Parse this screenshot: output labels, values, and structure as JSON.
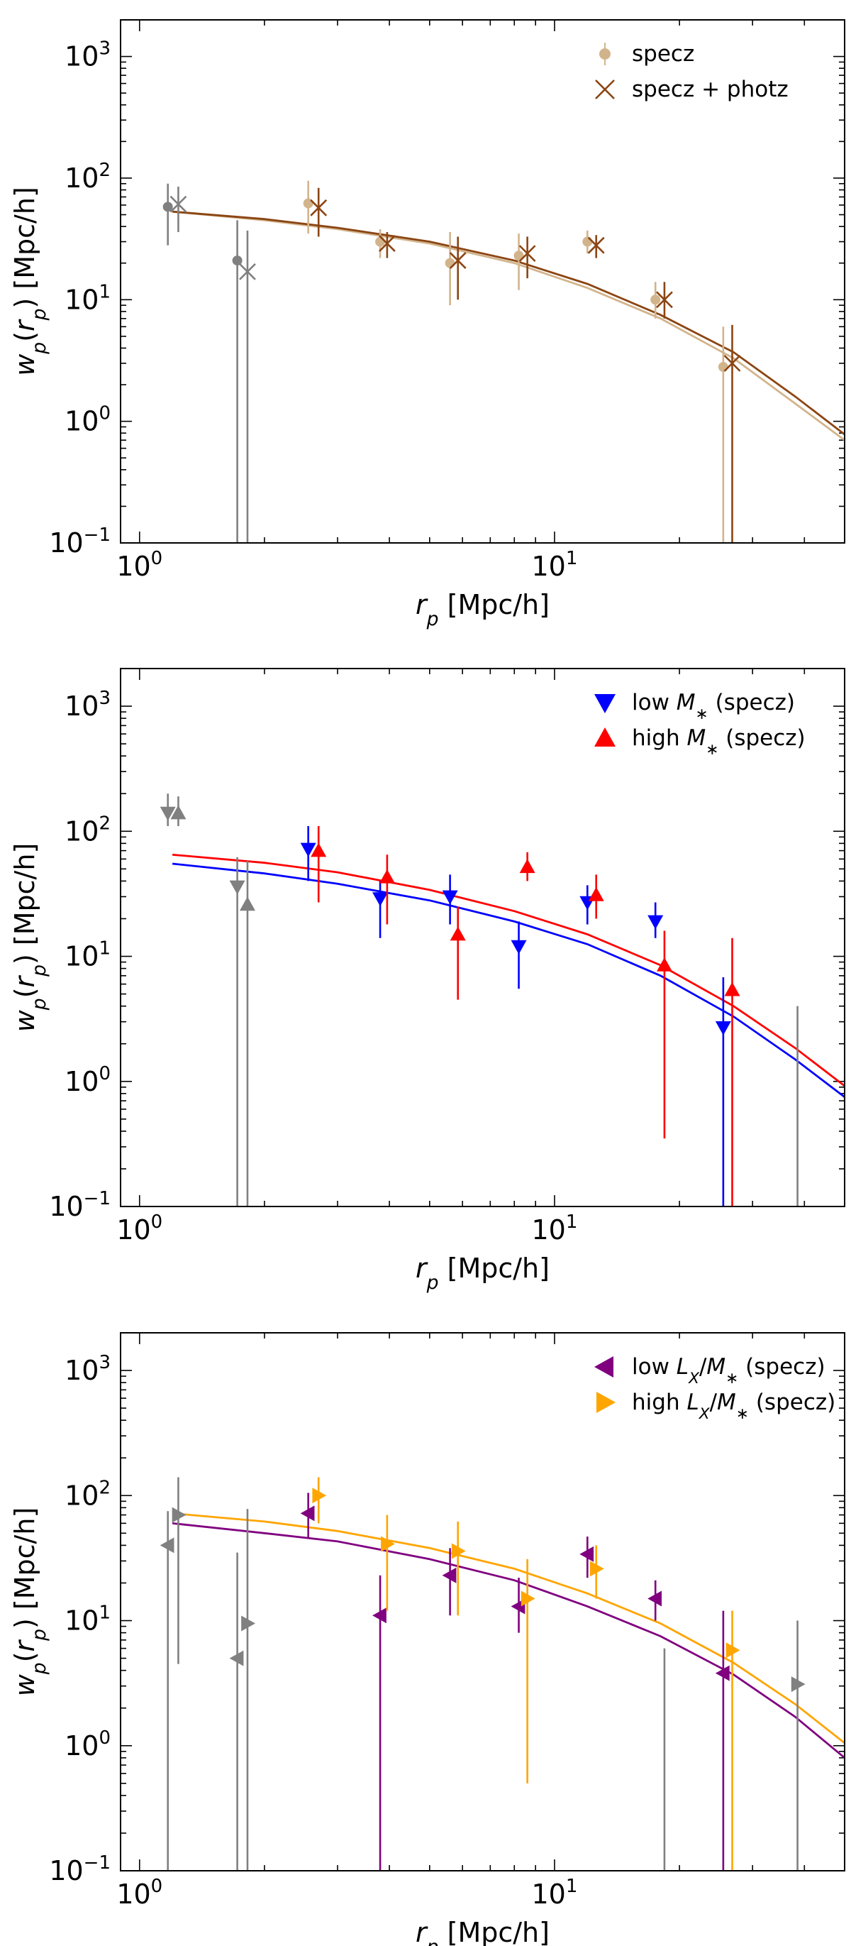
{
  "figure": {
    "description_title": ""
  },
  "chart_data": [
    {
      "type": "scatter",
      "panel": "top",
      "xscale": "log",
      "yscale": "log",
      "xlim": [
        0.9,
        50
      ],
      "ylim": [
        0.1,
        2000
      ],
      "xlabel": "r_p [Mpc/h]",
      "ylabel": "w_p(r_p) [Mpc/h]",
      "x_ticks": [
        {
          "value": 1,
          "mant": "10",
          "exp": "0"
        },
        {
          "value": 10,
          "mant": "10",
          "exp": "1"
        }
      ],
      "y_ticks": [
        {
          "value": 0.1,
          "mant": "10",
          "exp": "−1"
        },
        {
          "value": 1,
          "mant": "10",
          "exp": "0"
        },
        {
          "value": 10,
          "mant": "10",
          "exp": "1"
        },
        {
          "value": 100,
          "mant": "10",
          "exp": "2"
        },
        {
          "value": 1000,
          "mant": "10",
          "exp": "3"
        }
      ],
      "legend": {
        "position": "top-right",
        "entries": [
          {
            "label": "specz",
            "color": "#d2b48c",
            "marker": "dot"
          },
          {
            "label": "specz + photz",
            "color": "#8b4513",
            "marker": "x"
          }
        ]
      },
      "series": [
        {
          "name": "specz",
          "color": "#d2b48c",
          "marker": "dot",
          "size": 7,
          "x": [
            1.17,
            1.72,
            2.55,
            3.8,
            5.6,
            8.2,
            12.0,
            17.5,
            25.5
          ],
          "y": [
            58,
            21,
            62,
            30,
            20,
            23,
            30,
            10,
            2.8
          ],
          "ylo": [
            28,
            0.1,
            35,
            22,
            9,
            12,
            24,
            7,
            0.1
          ],
          "yhi": [
            90,
            45,
            95,
            38,
            36,
            35,
            37,
            14,
            6
          ],
          "grey_upto": 1
        },
        {
          "name": "specz + photz",
          "color": "#8b4513",
          "marker": "x",
          "size": 11,
          "x": [
            1.24,
            1.82,
            2.7,
            3.95,
            5.85,
            8.6,
            12.6,
            18.4,
            26.8
          ],
          "y": [
            61,
            17,
            57,
            29,
            21,
            24,
            28,
            10,
            3.0
          ],
          "ylo": [
            36,
            0.1,
            33,
            22,
            10,
            15,
            22,
            7,
            0.1
          ],
          "yhi": [
            85,
            37,
            83,
            36,
            33,
            33,
            34,
            14,
            6.2
          ],
          "grey_upto": 1
        }
      ],
      "models": [
        {
          "name": "specz model",
          "color": "#d2b48c",
          "x": [
            1.2,
            2,
            3,
            5,
            8,
            12,
            18,
            27,
            38,
            50
          ],
          "y": [
            53,
            45,
            38,
            29,
            20,
            12.5,
            7,
            3.3,
            1.4,
            0.7
          ]
        },
        {
          "name": "specz + photz model",
          "color": "#8b4513",
          "x": [
            1.2,
            2,
            3,
            5,
            8,
            12,
            18,
            27,
            38,
            50
          ],
          "y": [
            53,
            46,
            39,
            30,
            21,
            13.5,
            7.5,
            3.7,
            1.6,
            0.78
          ]
        }
      ]
    },
    {
      "type": "scatter",
      "panel": "middle",
      "xscale": "log",
      "yscale": "log",
      "xlim": [
        0.9,
        50
      ],
      "ylim": [
        0.1,
        2000
      ],
      "xlabel": "r_p [Mpc/h]",
      "ylabel": "w_p(r_p) [Mpc/h]",
      "x_ticks": [
        {
          "value": 1,
          "mant": "10",
          "exp": "0"
        },
        {
          "value": 10,
          "mant": "10",
          "exp": "1"
        }
      ],
      "y_ticks": [
        {
          "value": 0.1,
          "mant": "10",
          "exp": "−1"
        },
        {
          "value": 1,
          "mant": "10",
          "exp": "0"
        },
        {
          "value": 10,
          "mant": "10",
          "exp": "1"
        },
        {
          "value": 100,
          "mant": "10",
          "exp": "2"
        },
        {
          "value": 1000,
          "mant": "10",
          "exp": "3"
        }
      ],
      "legend": {
        "position": "top-right",
        "entries": [
          {
            "label": "low M_* (specz)",
            "color": "#0000ff",
            "marker": "tri-down"
          },
          {
            "label": "high M_* (specz)",
            "color": "#ff0000",
            "marker": "tri-up"
          }
        ]
      },
      "series": [
        {
          "name": "low M_* (specz)",
          "color": "#0000ff",
          "marker": "tri-down",
          "size": 11,
          "x": [
            1.17,
            1.72,
            2.55,
            3.8,
            5.6,
            8.2,
            12.0,
            17.5,
            25.5
          ],
          "y": [
            140,
            36,
            72,
            29,
            30,
            12,
            27,
            19,
            2.7
          ],
          "ylo": [
            110,
            0.1,
            40,
            14,
            18,
            5.5,
            18,
            14,
            0.1
          ],
          "yhi": [
            200,
            62,
            110,
            40,
            45,
            19,
            37,
            27,
            6.8
          ],
          "grey_upto": 1
        },
        {
          "name": "high M_* (specz)",
          "color": "#ff0000",
          "marker": "tri-up",
          "size": 11,
          "x": [
            1.24,
            1.82,
            2.7,
            3.95,
            5.85,
            8.6,
            12.6,
            18.4,
            26.8,
            38.5
          ],
          "y": [
            140,
            26,
            70,
            43,
            15,
            52,
            31,
            8.5,
            5.4,
            4
          ],
          "ylo": [
            110,
            0.1,
            27,
            18,
            4.5,
            40,
            20,
            0.35,
            0.1,
            0.1
          ],
          "yhi": [
            190,
            58,
            110,
            65,
            25,
            68,
            45,
            16,
            14,
            4
          ],
          "grey_upto": 1,
          "grey_from": 9,
          "no_marker": [
            9
          ]
        }
      ],
      "models": [
        {
          "name": "low M_* model",
          "color": "#0000ff",
          "x": [
            1.2,
            2,
            3,
            5,
            8,
            12,
            18,
            27,
            38,
            50
          ],
          "y": [
            55,
            46,
            38,
            28,
            19,
            12.5,
            7,
            3.3,
            1.5,
            0.75
          ]
        },
        {
          "name": "high M_* model",
          "color": "#ff0000",
          "x": [
            1.2,
            2,
            3,
            5,
            8,
            12,
            18,
            27,
            38,
            50
          ],
          "y": [
            65,
            56,
            47,
            34,
            23,
            15,
            8.5,
            4.0,
            1.85,
            0.92
          ]
        }
      ]
    },
    {
      "type": "scatter",
      "panel": "bottom",
      "xscale": "log",
      "yscale": "log",
      "xlim": [
        0.9,
        50
      ],
      "ylim": [
        0.1,
        2000
      ],
      "xlabel": "r_p [Mpc/h]",
      "ylabel": "w_p(r_p) [Mpc/h]",
      "x_ticks": [
        {
          "value": 1,
          "mant": "10",
          "exp": "0"
        },
        {
          "value": 10,
          "mant": "10",
          "exp": "1"
        }
      ],
      "y_ticks": [
        {
          "value": 0.1,
          "mant": "10",
          "exp": "−1"
        },
        {
          "value": 1,
          "mant": "10",
          "exp": "0"
        },
        {
          "value": 10,
          "mant": "10",
          "exp": "1"
        },
        {
          "value": 100,
          "mant": "10",
          "exp": "2"
        },
        {
          "value": 1000,
          "mant": "10",
          "exp": "3"
        }
      ],
      "legend": {
        "position": "top-right",
        "entries": [
          {
            "label": "low L_X/M_* (specz)",
            "color": "#800080",
            "marker": "tri-left"
          },
          {
            "label": "high L_X/M_* (specz)",
            "color": "#ffa500",
            "marker": "tri-right"
          }
        ]
      },
      "series": [
        {
          "name": "low L_X/M_* (specz)",
          "color": "#800080",
          "marker": "tri-left",
          "size": 11,
          "x": [
            1.17,
            1.72,
            2.55,
            3.8,
            5.6,
            8.2,
            12.0,
            17.5,
            25.5
          ],
          "y": [
            40,
            5,
            72,
            11,
            23,
            13,
            34,
            15,
            3.8
          ],
          "ylo": [
            0.1,
            0.1,
            45,
            0.1,
            11,
            8,
            22,
            10,
            0.1
          ],
          "yhi": [
            75,
            35,
            105,
            23,
            38,
            22,
            47,
            21,
            12
          ],
          "grey_upto": 1
        },
        {
          "name": "high L_X/M_* (specz)",
          "color": "#ffa500",
          "marker": "tri-right",
          "size": 11,
          "x": [
            1.24,
            1.82,
            2.7,
            3.95,
            5.85,
            8.6,
            12.6,
            18.4,
            26.8,
            38.5
          ],
          "y": [
            70,
            9.5,
            100,
            41,
            36,
            15,
            26,
            7,
            5.8,
            3.1
          ],
          "ylo": [
            4.5,
            0.1,
            60,
            12,
            11,
            0.5,
            15,
            0.1,
            0.1,
            0.1
          ],
          "yhi": [
            140,
            78,
            140,
            70,
            62,
            31,
            40,
            6,
            12,
            10
          ],
          "grey_upto": 1,
          "grey_from": 7,
          "no_marker": [
            7
          ],
          "color_from": 8
        }
      ],
      "models": [
        {
          "name": "low L_X/M_* model",
          "color": "#800080",
          "x": [
            1.2,
            2,
            3,
            5,
            8,
            12,
            18,
            27,
            38,
            50
          ],
          "y": [
            60,
            50,
            43,
            31,
            21,
            13,
            7.5,
            3.7,
            1.7,
            0.8
          ]
        },
        {
          "name": "high L_X/M_* model",
          "color": "#ffa500",
          "x": [
            1.2,
            2,
            3,
            5,
            8,
            12,
            18,
            27,
            38,
            50
          ],
          "y": [
            72,
            62,
            52,
            38,
            26,
            16.5,
            9.5,
            4.6,
            2.15,
            1.05
          ]
        }
      ]
    }
  ],
  "grey_color": "#808080"
}
